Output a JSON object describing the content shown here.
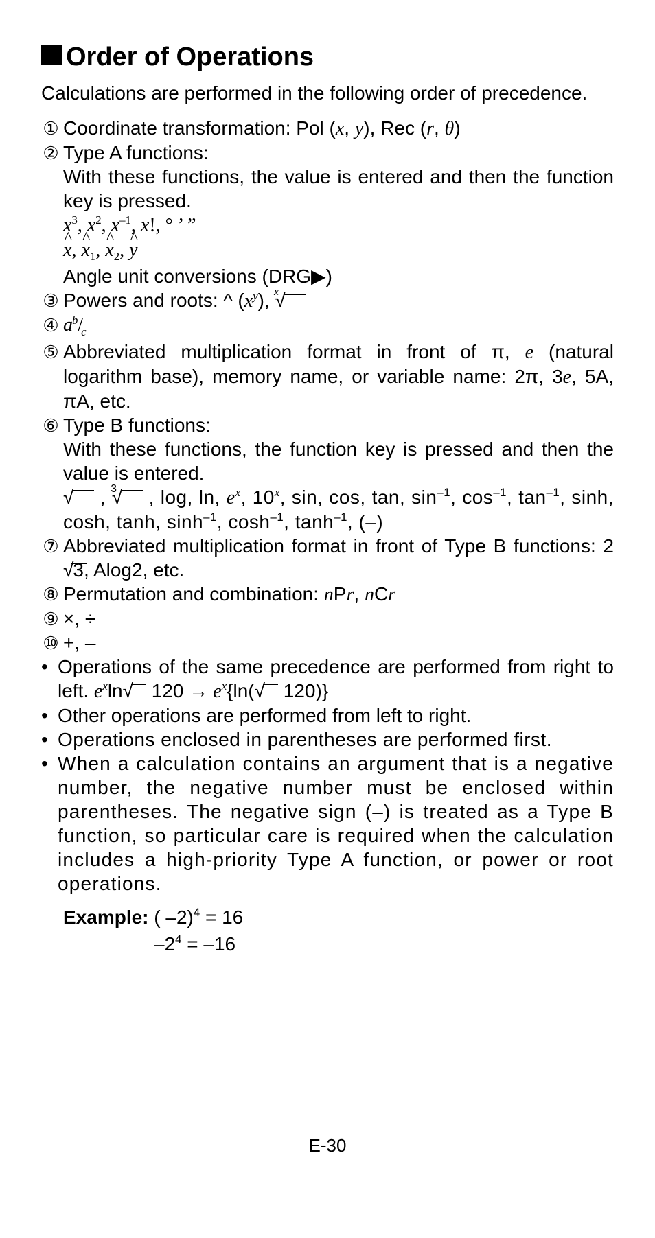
{
  "heading": "Order of Operations",
  "lead": "Calculations are performed in the following order of precedence.",
  "circled": [
    "①",
    "②",
    "③",
    "④",
    "⑤",
    "⑥",
    "⑦",
    "⑧",
    "⑨",
    "⑩"
  ],
  "item1": "Coordinate transformation: Pol (",
  "item1_xy_x": "x",
  "item1_xy_sep": ", ",
  "item1_xy_y": "y",
  "item1_mid": "), Rec (",
  "item1_r": "r",
  "item1_sep2": ", ",
  "item1_theta": "θ",
  "item1_end": ")",
  "item2": "Type A functions:",
  "item2_desc": "With these functions, the value is entered and then the function key is pressed.",
  "item2_m1_x1": "x",
  "item2_m1_e1": "3",
  "item2_m1_c1": ", ",
  "item2_m1_x2": "x",
  "item2_m1_e2": "2",
  "item2_m1_c2": ", ",
  "item2_m1_x3": "x",
  "item2_m1_e3": "–1",
  "item2_m1_c3": ", ",
  "item2_m1_x4": "x",
  "item2_m1_bang": "!, ° ’ ”",
  "item2_m2_x1": "x",
  "item2_m2_c1": ", ",
  "item2_m2_x2": "x",
  "item2_m2_s1": "1",
  "item2_m2_c2": ", ",
  "item2_m2_x3": "x",
  "item2_m2_s2": "2",
  "item2_m2_c3": ", ",
  "item2_m2_y": "y",
  "item2_m3": "Angle unit conversions (DRG",
  "item2_m3_b": ")",
  "item3": "Powers and roots: ^ (",
  "item3_x": "x",
  "item3_y": "y",
  "item3_close": "), ",
  "item4_a": "a",
  "item4_b": "b",
  "item4_slash": "/",
  "item4_c": "c",
  "item5": "Abbreviated multiplication format in front of π, ",
  "item5_e": "e",
  "item5_mid": " (natural logarithm base), memory name, or variable name: 2π, 3",
  "item5_e2": "e",
  "item5_end": ", 5A, πA, etc.",
  "item6": "Type B functions:",
  "item6_desc": "With these functions, the function key is pressed and then the value is entered.",
  "item6_m_a": " , ",
  "item6_m_b": " , log, ln, ",
  "item6_m_e": "e",
  "item6_m_ex": "x",
  "item6_m_c": ", 10",
  "item6_m_cx": "x",
  "item6_m_d": ", sin, cos, tan, sin",
  "item6_m_dm1": "–1",
  "item6_m_e2": ", cos",
  "item6_m_em1": "–1",
  "item6_m_f": ", tan",
  "item6_m_fm1": "–1",
  "item6_m_g": ", sinh, cosh, tanh, sinh",
  "item6_m_gm1": "–1",
  "item6_m_h": ", cosh",
  "item6_m_hm1": "–1",
  "item6_m_i": ", tanh",
  "item6_m_im1": "–1",
  "item6_m_j": ", (–)",
  "item7": "Abbreviated multiplication format in front of Type B functions: 2",
  "item7_sqrt3": "3",
  "item7_end": ", Alog2, etc.",
  "item8": "Permutation and combination: ",
  "item8_n1": "n",
  "item8_P": "P",
  "item8_r1": "r",
  "item8_c": ", ",
  "item8_n2": "n",
  "item8_C": "C",
  "item8_r2": "r",
  "item9": "×, ÷",
  "item10": "+, –",
  "b1a": "Operations of the same precedence are performed from right to left. ",
  "b1_e": "e",
  "b1_x": "x",
  "b1_ln": "ln",
  "b1_120": " 120 ",
  "b1_arrow": "→",
  "b1_e2": " e",
  "b1_x2": "x",
  "b1_brace": "{ln(",
  "b1_120b": " 120)}",
  "b2": "Other operations are performed from left to right.",
  "b3": "Operations enclosed in parentheses are performed first.",
  "b4": "When a calculation contains an argument that is a negative number, the negative number must be enclosed within parentheses. The negative sign (–) is treated as a Type B function, so particular care is required when the calculation includes a high-priority Type A function, or power or root operations.",
  "ex_label": "Example:",
  "ex_l1": " ( –2)",
  "ex_l1_e": "4",
  "ex_l1_eq": " = 16",
  "ex_l2": "–2",
  "ex_l2_e": "4",
  "ex_l2_eq": " = –16",
  "footer": "E-30"
}
